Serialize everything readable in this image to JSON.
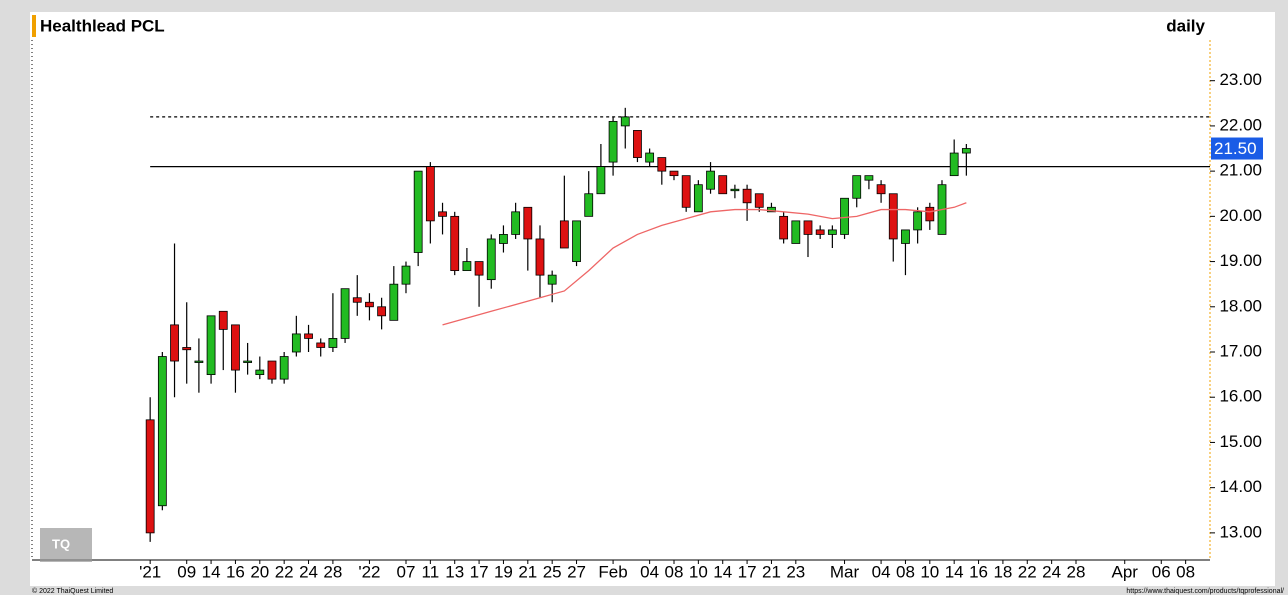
{
  "chart_data": {
    "type": "candlestick",
    "title": "Healthlead PCL",
    "interval": "daily",
    "footer_left": "© 2022 ThaiQuest Limited",
    "footer_right": "https://www.thaiquest.com/products/tqprofessional/",
    "logo": "TQ",
    "up_color": "#22bb22",
    "down_color": "#dd1111",
    "x": [
      0,
      1,
      2,
      3,
      4,
      5,
      6,
      7,
      8,
      9,
      10,
      11,
      12,
      13,
      14,
      15,
      16,
      17,
      18,
      19,
      20,
      21,
      22,
      23,
      24,
      25,
      26,
      27,
      28,
      29,
      30,
      31,
      32,
      33,
      34,
      35,
      36,
      37,
      38,
      39,
      40,
      41,
      42,
      43,
      44,
      45,
      46,
      47,
      48,
      49,
      50,
      51,
      52,
      53,
      54,
      55,
      56,
      57,
      58,
      59,
      60,
      61,
      62,
      63,
      64,
      65,
      66,
      67
    ],
    "open": [
      15.5,
      13.6,
      17.6,
      17.1,
      16.8,
      16.5,
      17.9,
      17.6,
      16.8,
      16.5,
      16.8,
      16.4,
      17.0,
      17.4,
      17.2,
      17.1,
      17.3,
      18.2,
      18.1,
      18.0,
      17.7,
      18.5,
      19.2,
      21.1,
      20.1,
      20.0,
      18.8,
      19.0,
      18.6,
      19.4,
      19.6,
      20.2,
      19.5,
      18.5,
      19.9,
      19.0,
      20.0,
      20.5,
      21.2,
      22.0,
      21.9,
      21.2,
      21.3,
      21.0,
      20.9,
      20.1,
      20.6,
      20.9,
      20.6,
      20.6,
      20.5,
      20.1,
      20.0,
      19.4,
      19.9,
      19.7,
      19.6,
      19.6,
      20.4,
      20.8,
      20.7,
      20.5,
      19.4,
      19.7,
      20.2,
      19.6,
      20.9,
      21.4
    ],
    "high": [
      16.0,
      17.0,
      19.4,
      18.1,
      17.3,
      17.8,
      17.9,
      17.6,
      17.2,
      16.9,
      16.8,
      17.0,
      17.8,
      17.6,
      17.3,
      18.3,
      18.4,
      18.7,
      18.3,
      18.2,
      18.9,
      19.0,
      21.0,
      21.2,
      20.3,
      20.1,
      19.3,
      19.0,
      19.6,
      19.8,
      20.3,
      20.2,
      19.8,
      18.8,
      20.9,
      19.9,
      21.0,
      21.6,
      22.2,
      22.4,
      21.9,
      21.5,
      21.3,
      21.0,
      20.9,
      20.8,
      21.2,
      20.9,
      20.7,
      20.7,
      20.5,
      20.3,
      20.1,
      19.9,
      19.9,
      19.8,
      19.8,
      20.4,
      20.9,
      20.9,
      20.8,
      20.5,
      19.7,
      20.2,
      20.3,
      20.8,
      21.7,
      21.6
    ],
    "low": [
      12.8,
      13.5,
      16.0,
      16.3,
      16.1,
      16.3,
      16.6,
      16.1,
      16.5,
      16.4,
      16.3,
      16.3,
      16.9,
      17.0,
      16.9,
      17.0,
      17.2,
      17.8,
      17.7,
      17.5,
      17.7,
      18.3,
      18.9,
      19.4,
      19.6,
      18.7,
      18.8,
      18.0,
      18.4,
      19.2,
      19.5,
      18.8,
      18.2,
      18.1,
      19.3,
      18.9,
      20.0,
      20.5,
      20.9,
      21.5,
      21.2,
      21.1,
      20.7,
      20.8,
      20.1,
      20.1,
      20.5,
      20.5,
      20.4,
      19.9,
      20.1,
      20.1,
      19.4,
      19.4,
      19.1,
      19.5,
      19.3,
      19.5,
      20.2,
      20.6,
      20.3,
      19.0,
      18.7,
      19.4,
      19.7,
      19.6,
      20.9,
      20.9
    ],
    "close": [
      13.0,
      16.9,
      16.8,
      17.05,
      16.8,
      17.8,
      17.5,
      16.6,
      16.8,
      16.6,
      16.4,
      16.9,
      17.4,
      17.3,
      17.1,
      17.3,
      18.4,
      18.1,
      18.0,
      17.8,
      18.5,
      18.9,
      21.0,
      19.9,
      20.0,
      18.8,
      19.0,
      18.7,
      19.5,
      19.6,
      20.1,
      19.5,
      18.7,
      18.7,
      19.3,
      19.9,
      20.5,
      21.1,
      22.1,
      22.2,
      21.3,
      21.4,
      21.0,
      20.9,
      20.2,
      20.7,
      21.0,
      20.5,
      20.6,
      20.3,
      20.2,
      20.2,
      19.5,
      19.9,
      19.6,
      19.6,
      19.7,
      20.4,
      20.9,
      20.9,
      20.5,
      19.5,
      19.7,
      20.1,
      19.9,
      20.7,
      21.4,
      21.5
    ],
    "moving_average": {
      "color": "#ee6666",
      "x": [
        24,
        28,
        32,
        34,
        36,
        38,
        40,
        42,
        44,
        46,
        48,
        50,
        52,
        54,
        56,
        58,
        60,
        62,
        64,
        66,
        67
      ],
      "values": [
        17.6,
        17.9,
        18.2,
        18.35,
        18.8,
        19.3,
        19.6,
        19.8,
        19.95,
        20.1,
        20.15,
        20.15,
        20.1,
        20.05,
        19.95,
        20.0,
        20.15,
        20.15,
        20.1,
        20.2,
        20.3
      ]
    },
    "resistance_dashed": 22.2,
    "support_line": 21.1,
    "last_price": {
      "value": 21.5,
      "label": "21.50"
    },
    "xlim": [
      -9.7,
      87
    ],
    "ylim": [
      12.4,
      23.9
    ],
    "yticks": [
      {
        "value": 13,
        "label": "13.00"
      },
      {
        "value": 14,
        "label": "14.00"
      },
      {
        "value": 15,
        "label": "15.00"
      },
      {
        "value": 16,
        "label": "16.00"
      },
      {
        "value": 17,
        "label": "17.00"
      },
      {
        "value": 18,
        "label": "18.00"
      },
      {
        "value": 19,
        "label": "19.00"
      },
      {
        "value": 20,
        "label": "20.00"
      },
      {
        "value": 21,
        "label": "21.00"
      },
      {
        "value": 22,
        "label": "22.00"
      },
      {
        "value": 23,
        "label": "23.00"
      }
    ],
    "xticks": [
      {
        "value": 0,
        "label": "'21"
      },
      {
        "value": 3,
        "label": "09"
      },
      {
        "value": 5,
        "label": "14"
      },
      {
        "value": 7,
        "label": "16"
      },
      {
        "value": 9,
        "label": "20"
      },
      {
        "value": 11,
        "label": "22"
      },
      {
        "value": 13,
        "label": "24"
      },
      {
        "value": 15,
        "label": "28"
      },
      {
        "value": 18,
        "label": "'22"
      },
      {
        "value": 21,
        "label": "07"
      },
      {
        "value": 23,
        "label": "11"
      },
      {
        "value": 25,
        "label": "13"
      },
      {
        "value": 27,
        "label": "17"
      },
      {
        "value": 29,
        "label": "19"
      },
      {
        "value": 31,
        "label": "21"
      },
      {
        "value": 33,
        "label": "25"
      },
      {
        "value": 35,
        "label": "27"
      },
      {
        "value": 38,
        "label": "Feb"
      },
      {
        "value": 41,
        "label": "04"
      },
      {
        "value": 43,
        "label": "08"
      },
      {
        "value": 45,
        "label": "10"
      },
      {
        "value": 47,
        "label": "14"
      },
      {
        "value": 49,
        "label": "17"
      },
      {
        "value": 51,
        "label": "21"
      },
      {
        "value": 53,
        "label": "23"
      },
      {
        "value": 57,
        "label": "Mar"
      },
      {
        "value": 60,
        "label": "04"
      },
      {
        "value": 62,
        "label": "08"
      },
      {
        "value": 64,
        "label": "10"
      },
      {
        "value": 66,
        "label": "14"
      },
      {
        "value": 68,
        "label": "16"
      },
      {
        "value": 70,
        "label": "18"
      },
      {
        "value": 72,
        "label": "22"
      },
      {
        "value": 74,
        "label": "24"
      },
      {
        "value": 76,
        "label": "28"
      },
      {
        "value": 80,
        "label": "Apr"
      },
      {
        "value": 83,
        "label": "06"
      },
      {
        "value": 85,
        "label": "08"
      }
    ]
  }
}
